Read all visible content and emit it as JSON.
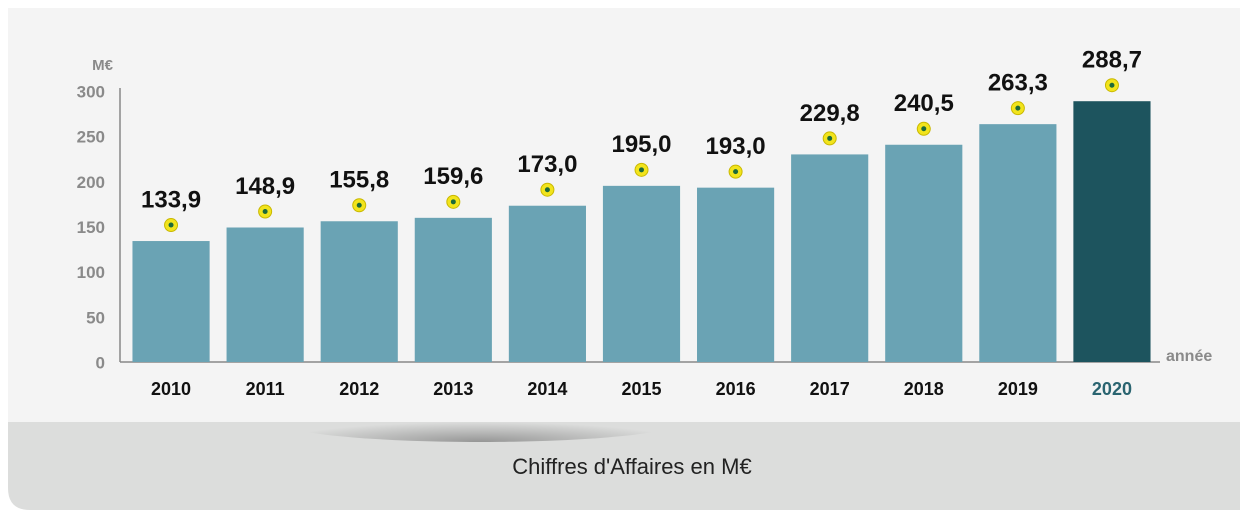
{
  "chart_data": {
    "type": "bar",
    "y_label": "M€",
    "x_label": "année",
    "caption": "Chiffres d'Affaires en M€",
    "categories": [
      "2010",
      "2011",
      "2012",
      "2013",
      "2014",
      "2015",
      "2016",
      "2017",
      "2018",
      "2019",
      "2020"
    ],
    "values": [
      133.9,
      148.9,
      155.8,
      159.6,
      173.0,
      195.0,
      193.0,
      229.8,
      240.5,
      263.3,
      288.7
    ],
    "value_labels": [
      "133,9",
      "148,9",
      "155,8",
      "159,6",
      "173,0",
      "195,0",
      "193,0",
      "229,8",
      "240,5",
      "263,3",
      "288,7"
    ],
    "colors": [
      "#6aa3b4",
      "#6aa3b4",
      "#6aa3b4",
      "#6aa3b4",
      "#6aa3b4",
      "#6aa3b4",
      "#6aa3b4",
      "#6aa3b4",
      "#6aa3b4",
      "#6aa3b4",
      "#1d545e"
    ],
    "label_colors": [
      "#111111",
      "#111111",
      "#111111",
      "#111111",
      "#111111",
      "#111111",
      "#111111",
      "#111111",
      "#111111",
      "#111111",
      "#2a6470"
    ],
    "ylim": [
      0,
      300
    ],
    "yticks": [
      0,
      50,
      100,
      150,
      200,
      250,
      300
    ],
    "grid": false
  }
}
